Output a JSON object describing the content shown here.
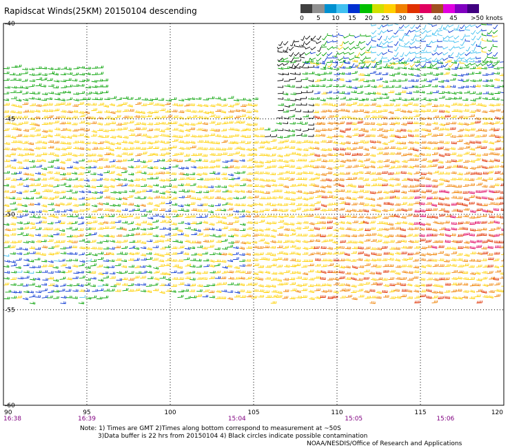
{
  "title": "Rapidscat Winds(25KM) 20150104 descending",
  "legend": {
    "colors": [
      "#404040",
      "#909090",
      "#0090d0",
      "#40c0f0",
      "#0030d0",
      "#00c000",
      "#d0e000",
      "#ffd000",
      "#f08000",
      "#e03000",
      "#e00060",
      "#a05020",
      "#e000e0",
      "#8000c0",
      "#400080"
    ],
    "labels": [
      "0",
      "5",
      "10",
      "15",
      "20",
      "25",
      "30",
      "35",
      "40",
      "45"
    ],
    "unit_label": ">50 knots"
  },
  "map": {
    "lon_range": [
      90,
      120
    ],
    "lat_range": [
      -60,
      -40
    ],
    "lon_ticks": [
      "90",
      "95",
      "100",
      "105",
      "110",
      "115",
      "120"
    ],
    "lat_ticks": [
      "-40",
      "-45",
      "-50",
      "-55",
      "-60"
    ],
    "gridlines": true,
    "time_labels": [
      {
        "lon": 90,
        "text": "16:38"
      },
      {
        "lon": 95,
        "text": "16:39"
      },
      {
        "lon": 104,
        "text": "15:04"
      },
      {
        "lon": 111,
        "text": "15:05"
      },
      {
        "lon": 116.5,
        "text": "15:06"
      }
    ]
  },
  "note": {
    "line1": "Note: 1) Times are GMT 2)Times along bottom correspond to measurement at ~50S",
    "line2": "3)Data buffer is 22 hrs from 20150104 4) Black circles indicate possible contamination"
  },
  "credit": "NOAA/NESDIS/Office of Research and Applications",
  "colors": {
    "time_label": "#800080",
    "grid": "#000000"
  }
}
